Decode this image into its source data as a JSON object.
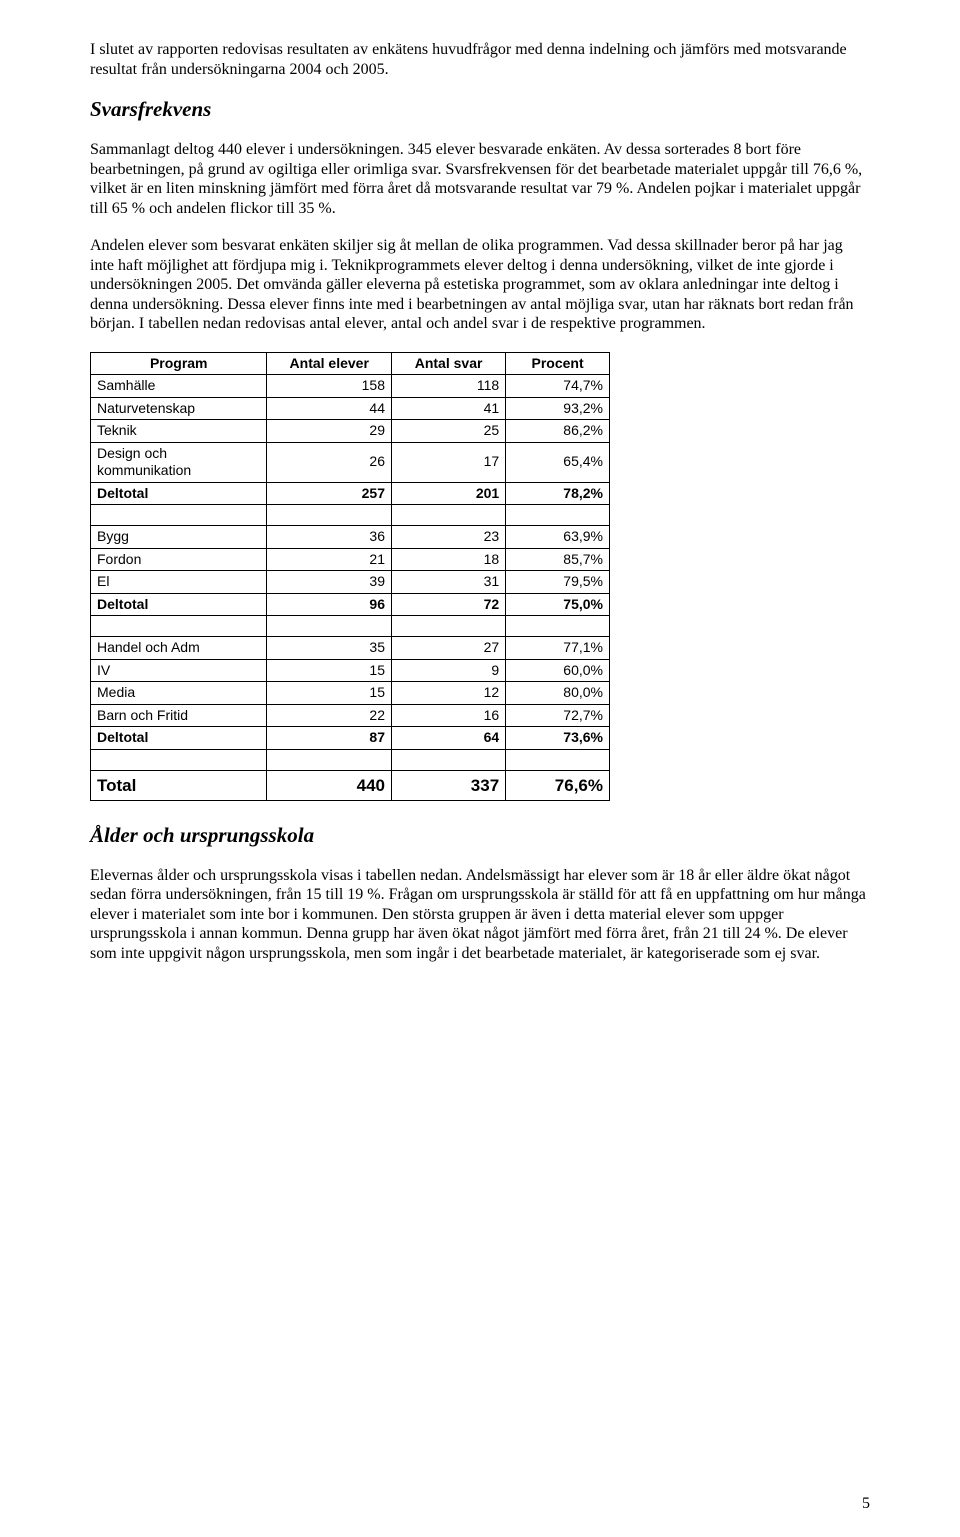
{
  "paragraphs": {
    "p1": "I slutet av rapporten redovisas resultaten av enkätens huvudfrågor med denna indelning och jämförs med motsvarande resultat från undersökningarna 2004 och 2005.",
    "p2": "Sammanlagt deltog 440 elever i undersökningen. 345 elever besvarade enkäten. Av dessa sorterades 8 bort före bearbetningen, på grund av ogiltiga eller orimliga svar. Svarsfrekvensen för det bearbetade materialet uppgår till 76,6 %, vilket är en liten minskning jämfört med förra året då motsvarande resultat var 79 %. Andelen pojkar i materialet uppgår till 65 % och andelen flickor till 35 %.",
    "p3": "Andelen elever som besvarat enkäten skiljer sig åt mellan de olika programmen. Vad dessa skillnader beror på har jag inte haft möjlighet att fördjupa mig i. Teknikprogrammets elever deltog i denna undersökning, vilket de inte gjorde i undersökningen 2005. Det omvända gäller eleverna på estetiska programmet, som av oklara anledningar inte deltog i denna undersökning. Dessa elever finns inte med i bearbetningen av antal möjliga svar, utan har räknats bort redan från början. I tabellen nedan redovisas antal elever, antal och andel svar i de respektive programmen.",
    "p4": "Elevernas ålder och ursprungsskola visas i tabellen nedan. Andelsmässigt har elever som är 18 år eller äldre ökat något sedan förra undersökningen, från 15 till 19 %. Frågan om ursprungsskola är ställd för att få en uppfattning om hur många elever i materialet som inte bor i kommunen. Den största gruppen är även i detta material elever som uppger ursprungsskola i annan kommun. Denna grupp har även ökat något jämfört med förra året, från 21 till 24 %. De elever som inte uppgivit någon ursprungsskola, men som ingår i det bearbetade materialet, är kategoriserade som ej svar."
  },
  "headings": {
    "h1": "Svarsfrekvens",
    "h2": "Ålder och ursprungsskola"
  },
  "table": {
    "headers": {
      "c1": "Program",
      "c2": "Antal elever",
      "c3": "Antal svar",
      "c4": "Procent"
    },
    "groups": [
      {
        "rows": [
          {
            "label": "Samhälle",
            "c2": "158",
            "c3": "118",
            "c4": "74,7%"
          },
          {
            "label": "Naturvetenskap",
            "c2": "44",
            "c3": "41",
            "c4": "93,2%"
          },
          {
            "label": "Teknik",
            "c2": "29",
            "c3": "25",
            "c4": "86,2%"
          },
          {
            "label": "Design och kommunikation",
            "c2": "26",
            "c3": "17",
            "c4": "65,4%"
          }
        ],
        "subtotal": {
          "label": "Deltotal",
          "c2": "257",
          "c3": "201",
          "c4": "78,2%"
        }
      },
      {
        "rows": [
          {
            "label": "Bygg",
            "c2": "36",
            "c3": "23",
            "c4": "63,9%"
          },
          {
            "label": "Fordon",
            "c2": "21",
            "c3": "18",
            "c4": "85,7%"
          },
          {
            "label": "El",
            "c2": "39",
            "c3": "31",
            "c4": "79,5%"
          }
        ],
        "subtotal": {
          "label": "Deltotal",
          "c2": "96",
          "c3": "72",
          "c4": "75,0%"
        }
      },
      {
        "rows": [
          {
            "label": "Handel och Adm",
            "c2": "35",
            "c3": "27",
            "c4": "77,1%"
          },
          {
            "label": "IV",
            "c2": "15",
            "c3": "9",
            "c4": "60,0%"
          },
          {
            "label": "Media",
            "c2": "15",
            "c3": "12",
            "c4": "80,0%"
          },
          {
            "label": "Barn och Fritid",
            "c2": "22",
            "c3": "16",
            "c4": "72,7%"
          }
        ],
        "subtotal": {
          "label": "Deltotal",
          "c2": "87",
          "c3": "64",
          "c4": "73,6%"
        }
      }
    ],
    "total": {
      "label": "Total",
      "c2": "440",
      "c3": "337",
      "c4": "76,6%"
    },
    "col_widths": [
      "170px",
      "120px",
      "110px",
      "100px"
    ]
  },
  "page_number": "5"
}
